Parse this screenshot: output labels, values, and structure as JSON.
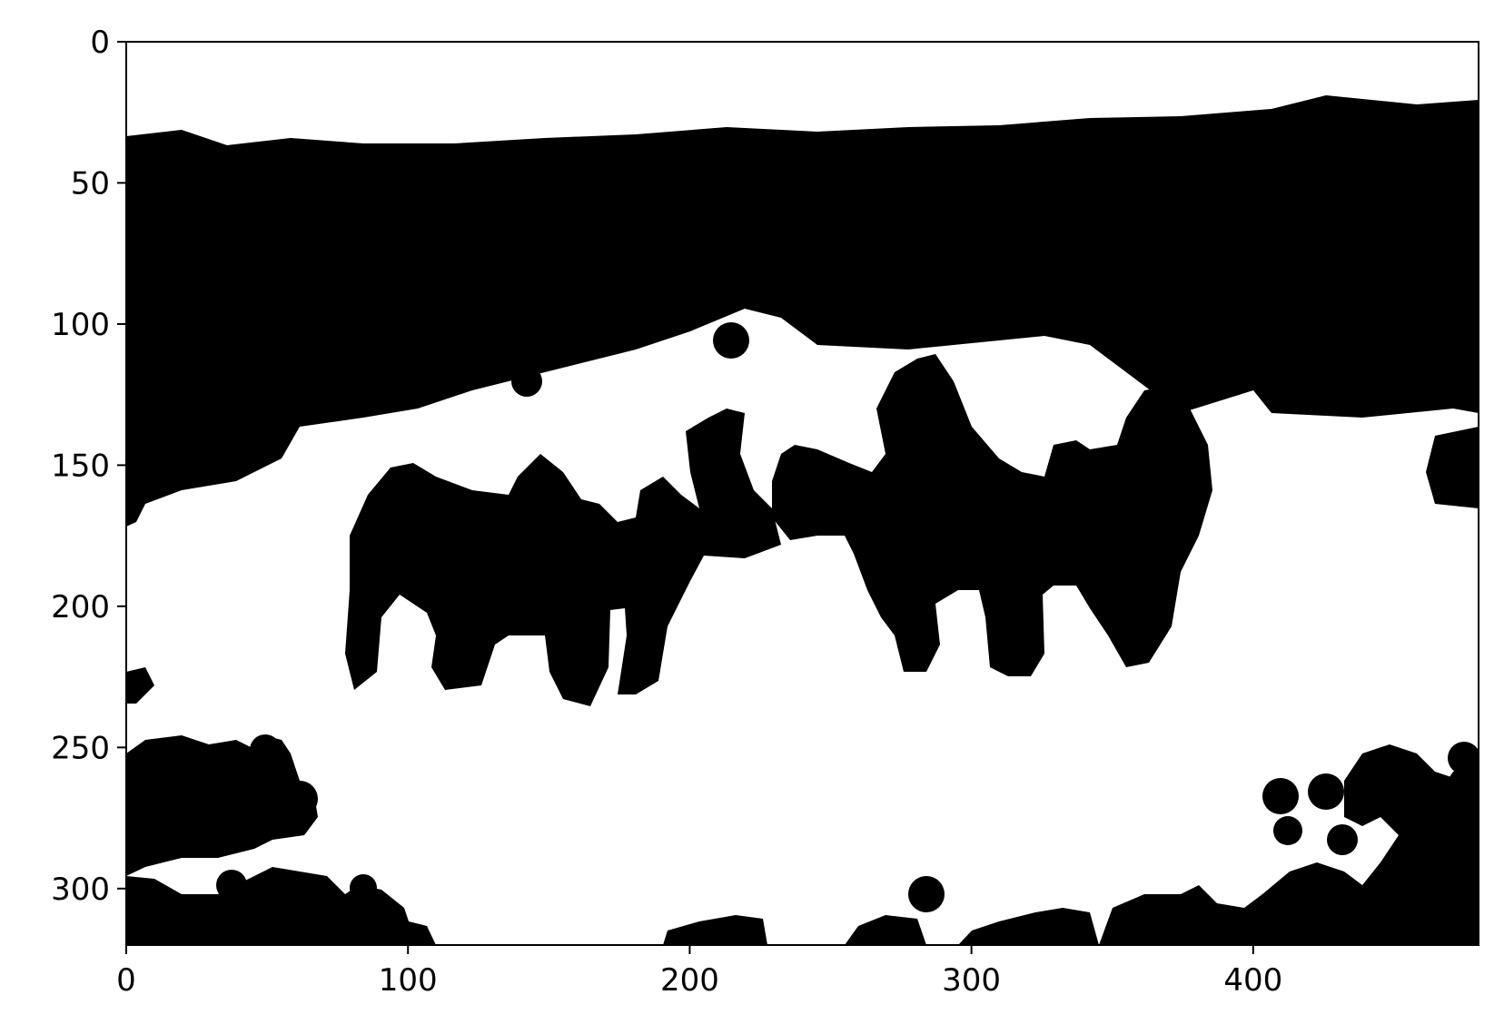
{
  "figure": {
    "type": "image",
    "description_kind": "binary-mask",
    "colors": {
      "foreground": "#000000",
      "background": "#ffffff",
      "axes": "#000000"
    }
  },
  "chart_data": {
    "type": "heatmap",
    "title": "",
    "xlabel": "",
    "ylabel": "",
    "xlim": [
      0,
      480
    ],
    "ylim": [
      320,
      0
    ],
    "y_inverted": true,
    "grid": false,
    "legend": "none",
    "xticks": [
      "0",
      "100",
      "200",
      "300",
      "400"
    ],
    "xtick_values": [
      0,
      100,
      200,
      300,
      400
    ],
    "yticks": [
      "0",
      "50",
      "100",
      "150",
      "200",
      "250",
      "300"
    ],
    "ytick_values": [
      0,
      50,
      100,
      150,
      200,
      250,
      300
    ],
    "content": "black-and-white segmentation mask"
  }
}
